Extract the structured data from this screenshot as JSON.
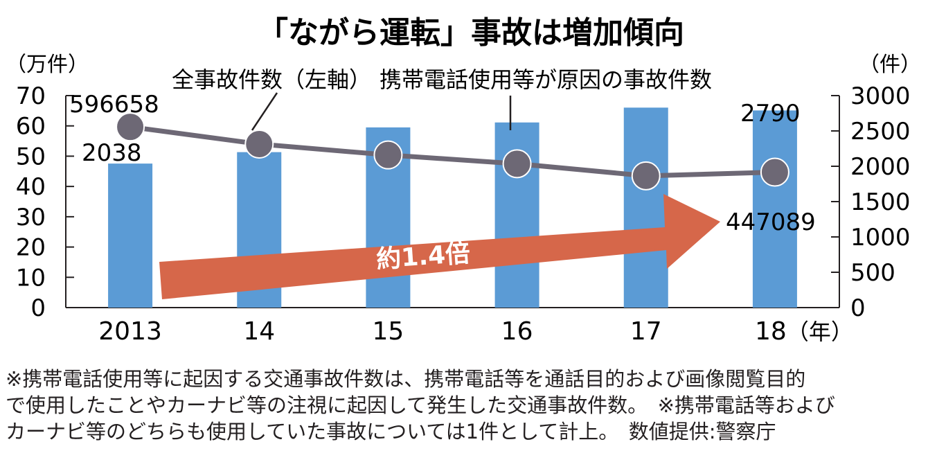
{
  "chart_data": {
    "type": "bar",
    "title": "「ながら運転」事故は増加傾向",
    "categories": [
      "2013",
      "14",
      "15",
      "16",
      "17",
      "18"
    ],
    "x_unit": "（年）",
    "y_left": {
      "unit": "（万件）",
      "range": [
        0,
        70
      ],
      "ticks": [
        0,
        10,
        20,
        30,
        40,
        50,
        60,
        70
      ]
    },
    "y_right": {
      "unit": "（件）",
      "range": [
        0,
        3000
      ],
      "ticks": [
        0,
        500,
        1000,
        1500,
        2000,
        2500,
        3000
      ]
    },
    "series": [
      {
        "name": "携帯電話使用等が原因の事故件数",
        "type": "bar",
        "axis": "right",
        "color": "#5b9bd5",
        "values": [
          2038,
          2200,
          2550,
          2620,
          2830,
          2790
        ]
      },
      {
        "name": "全事故件数（左軸）",
        "type": "line",
        "axis": "left",
        "color": "#6d6875",
        "values": [
          59.6658,
          54.0,
          50.4,
          47.5,
          43.5,
          44.7089
        ]
      }
    ],
    "data_labels": {
      "bar_first": "2038",
      "bar_last": "2790",
      "line_first": "596658",
      "line_last": "447089"
    },
    "arrow_label": "約1.4倍",
    "grid": false,
    "legend": "annotations"
  },
  "notes": [
    "※携帯電話使用等に起因する交通事故件数は、携帯電話等を通話目的および画像閲覧目的",
    "で使用したことやカーナビ等の注視に起因して発生した交通事故件数。　※携帯電話等および",
    "カーナビ等のどちらも使用していた事故については1件として計上。　数値提供:警察庁"
  ]
}
